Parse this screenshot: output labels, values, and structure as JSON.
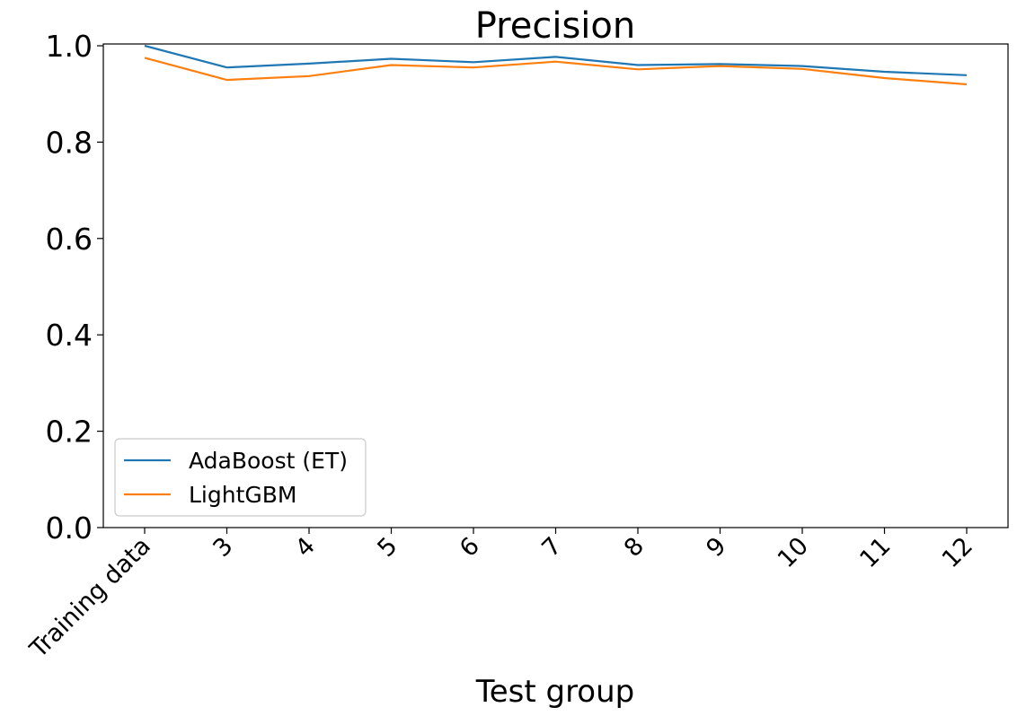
{
  "chart_data": {
    "type": "line",
    "title": "Precision",
    "xlabel": "Test group",
    "ylabel": "",
    "categories": [
      "Training data",
      "3",
      "4",
      "5",
      "6",
      "7",
      "8",
      "9",
      "10",
      "11",
      "12"
    ],
    "ylim": [
      0.0,
      1.0
    ],
    "yticks": [
      "0.0",
      "0.2",
      "0.4",
      "0.6",
      "0.8",
      "1.0"
    ],
    "grid": false,
    "legend_position": "lower-left",
    "series": [
      {
        "name": "AdaBoost (ET)",
        "color": "#1f77b4",
        "values": [
          1.0,
          0.955,
          0.963,
          0.973,
          0.966,
          0.977,
          0.96,
          0.962,
          0.958,
          0.946,
          0.939
        ]
      },
      {
        "name": "LightGBM",
        "color": "#ff7f0e",
        "values": [
          0.975,
          0.929,
          0.937,
          0.96,
          0.955,
          0.967,
          0.951,
          0.958,
          0.952,
          0.933,
          0.92
        ]
      }
    ]
  }
}
